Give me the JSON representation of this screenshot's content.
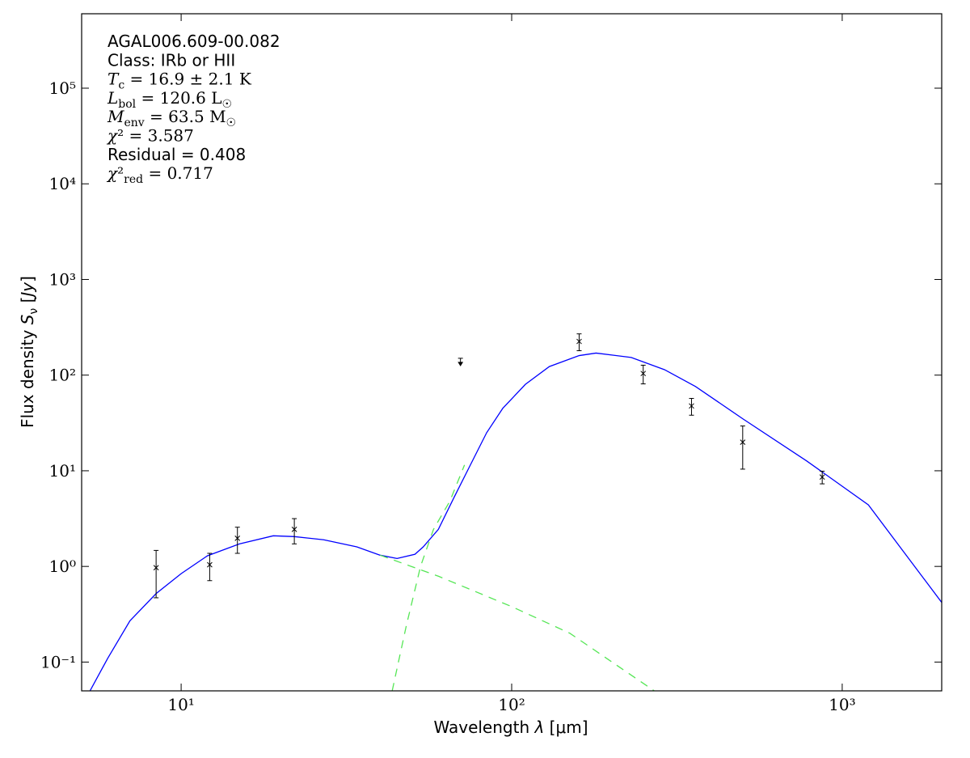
{
  "chart_data": {
    "type": "scatter",
    "xscale": "log",
    "yscale": "log",
    "xlim": [
      5,
      2000
    ],
    "ylim": [
      0.05,
      600000
    ],
    "xticks": [
      {
        "value": 10,
        "label": "10¹"
      },
      {
        "value": 100,
        "label": "10²"
      },
      {
        "value": 1000,
        "label": "10³"
      }
    ],
    "yticks": [
      {
        "value": 0.1,
        "label": "10⁻¹"
      },
      {
        "value": 1,
        "label": "10⁰"
      },
      {
        "value": 10,
        "label": "10¹"
      },
      {
        "value": 100,
        "label": "10²"
      },
      {
        "value": 1000,
        "label": "10³"
      },
      {
        "value": 10000,
        "label": "10⁴"
      },
      {
        "value": 100000,
        "label": "10⁵"
      }
    ],
    "xlabel": [
      {
        "text": "Wavelength "
      },
      {
        "italic": "λ"
      },
      {
        "text": " [μm]"
      }
    ],
    "ylabel": [
      {
        "text": "Flux density "
      },
      {
        "italic": "S"
      },
      {
        "sub": "ν"
      },
      {
        "text": " ["
      },
      {
        "italic": "Jy"
      },
      {
        "text": "]"
      }
    ],
    "annotations": [
      "AGAL006.609-00.082",
      "Class: IRb or HII",
      [
        {
          "italic": "T"
        },
        {
          "sub": "c"
        },
        {
          "text": " = 16.9 ± 2.1 K"
        }
      ],
      [
        {
          "italic": "L"
        },
        {
          "sub": "bol"
        },
        {
          "text": " = 120.6 L"
        },
        {
          "sub": "☉"
        }
      ],
      [
        {
          "italic": "M"
        },
        {
          "sub": "env"
        },
        {
          "text": " = 63.5 M"
        },
        {
          "sub": "☉"
        }
      ],
      [
        {
          "italic": "χ"
        },
        {
          "text": "² = 3.587"
        }
      ],
      "Residual = 0.408",
      [
        {
          "italic": "χ"
        },
        {
          "text": "²"
        },
        {
          "sub": "red"
        },
        {
          "text": " = 0.717"
        }
      ]
    ],
    "points": {
      "color": "#000000",
      "x": [
        8.4,
        12.2,
        14.8,
        22,
        160,
        250,
        350,
        500,
        870
      ],
      "values": [
        0.97,
        1.04,
        1.97,
        2.44,
        225,
        104,
        47.6,
        19.9,
        8.6
      ],
      "errors": [
        0.5,
        0.33,
        0.6,
        0.72,
        45,
        23,
        9.5,
        9.5,
        1.3
      ]
    },
    "upper_limits": {
      "color": "#000000",
      "x": [
        70
      ],
      "values": [
        150
      ]
    },
    "curves": [
      {
        "color": "#0000ff",
        "dash": false,
        "x": [
          5.3,
          6,
          7,
          8.4,
          10,
          12,
          15,
          19,
          22,
          27,
          34,
          40,
          45,
          51,
          54,
          60,
          67,
          75,
          84,
          94,
          110,
          130,
          160,
          180,
          230,
          290,
          360,
          500,
          780,
          1200,
          2000
        ],
        "values": [
          0.05,
          0.11,
          0.27,
          0.52,
          0.84,
          1.29,
          1.72,
          2.09,
          2.05,
          1.9,
          1.6,
          1.31,
          1.21,
          1.34,
          1.6,
          2.44,
          5.3,
          11.5,
          25,
          45,
          80,
          123,
          160,
          170,
          153,
          114,
          76,
          35,
          12.7,
          4.4,
          0.42
        ]
      },
      {
        "color": "#55e655",
        "dash": true,
        "x": [
          40,
          60,
          100,
          150,
          270
        ],
        "values": [
          1.31,
          0.79,
          0.38,
          0.2,
          0.05
        ]
      },
      {
        "color": "#55e655",
        "dash": true,
        "x": [
          43.5,
          48,
          53,
          58,
          65,
          72
        ],
        "values": [
          0.05,
          0.24,
          1.0,
          2.44,
          4.8,
          11.5
        ]
      }
    ]
  }
}
